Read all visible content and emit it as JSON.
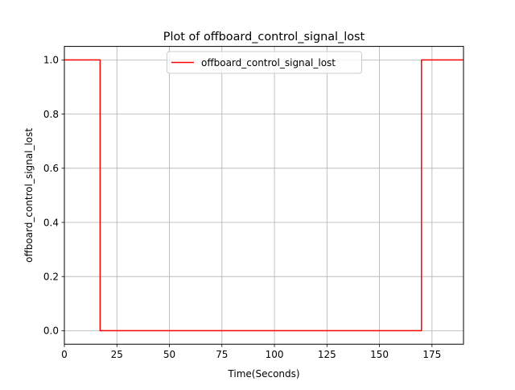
{
  "chart_data": {
    "type": "line",
    "title": "Plot of offboard_control_signal_lost",
    "xlabel": "Time(Seconds)",
    "ylabel": "offboard_control_signal_lost",
    "xlim": [
      0,
      190
    ],
    "ylim": [
      -0.05,
      1.05
    ],
    "xticks": [
      0,
      25,
      50,
      75,
      100,
      125,
      150,
      175
    ],
    "yticks": [
      0.0,
      0.2,
      0.4,
      0.6,
      0.8,
      1.0
    ],
    "xtick_labels": [
      "0",
      "25",
      "50",
      "75",
      "100",
      "125",
      "150",
      "175"
    ],
    "ytick_labels": [
      "0.0",
      "0.2",
      "0.4",
      "0.6",
      "0.8",
      "1.0"
    ],
    "grid": true,
    "legend_position": "upper center",
    "series": [
      {
        "name": "offboard_control_signal_lost",
        "color": "#ff0000",
        "x": [
          0,
          17,
          17,
          170,
          170,
          190
        ],
        "y": [
          1,
          1,
          0,
          0,
          1,
          1
        ]
      }
    ]
  }
}
